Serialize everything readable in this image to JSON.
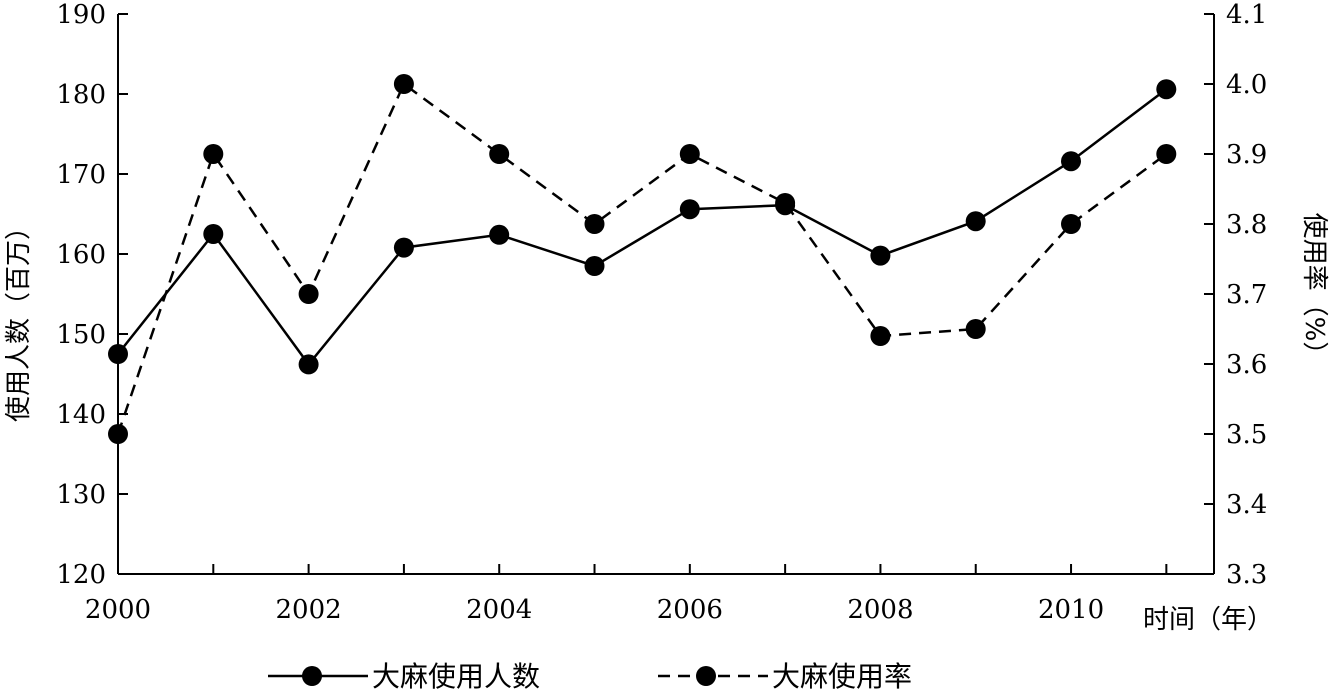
{
  "chart_data": {
    "type": "line",
    "x": [
      2000,
      2001,
      2002,
      2003,
      2004,
      2005,
      2006,
      2007,
      2008,
      2009,
      2010,
      2011
    ],
    "x_tick_labels": [
      "2000",
      "2002",
      "2004",
      "2006",
      "2008",
      "2010"
    ],
    "xlabel": "时间（年）",
    "ylabel_left": "使用人数（百万）",
    "ylabel_right": "使用率（%）",
    "ylim_left": [
      120,
      190
    ],
    "ylim_right": [
      3.3,
      4.1
    ],
    "y_left_ticks": [
      "190",
      "180",
      "170",
      "160",
      "150",
      "140",
      "130",
      "120"
    ],
    "y_right_ticks": [
      "4.1",
      "4.0",
      "3.9",
      "3.8",
      "3.7",
      "3.6",
      "3.5",
      "3.4",
      "3.3"
    ],
    "grid": false,
    "legend_position": "bottom",
    "series": [
      {
        "name": "大麻使用人数",
        "axis": "left",
        "style": "solid",
        "values": [
          147.5,
          162.5,
          146.2,
          160.8,
          162.4,
          158.5,
          165.6,
          166.1,
          159.8,
          164.1,
          171.6,
          180.6
        ]
      },
      {
        "name": "大麻使用率",
        "axis": "right",
        "style": "dashed",
        "values": [
          3.5,
          3.9,
          3.7,
          4.0,
          3.9,
          3.8,
          3.9,
          3.83,
          3.64,
          3.65,
          3.8,
          3.9
        ]
      }
    ]
  }
}
